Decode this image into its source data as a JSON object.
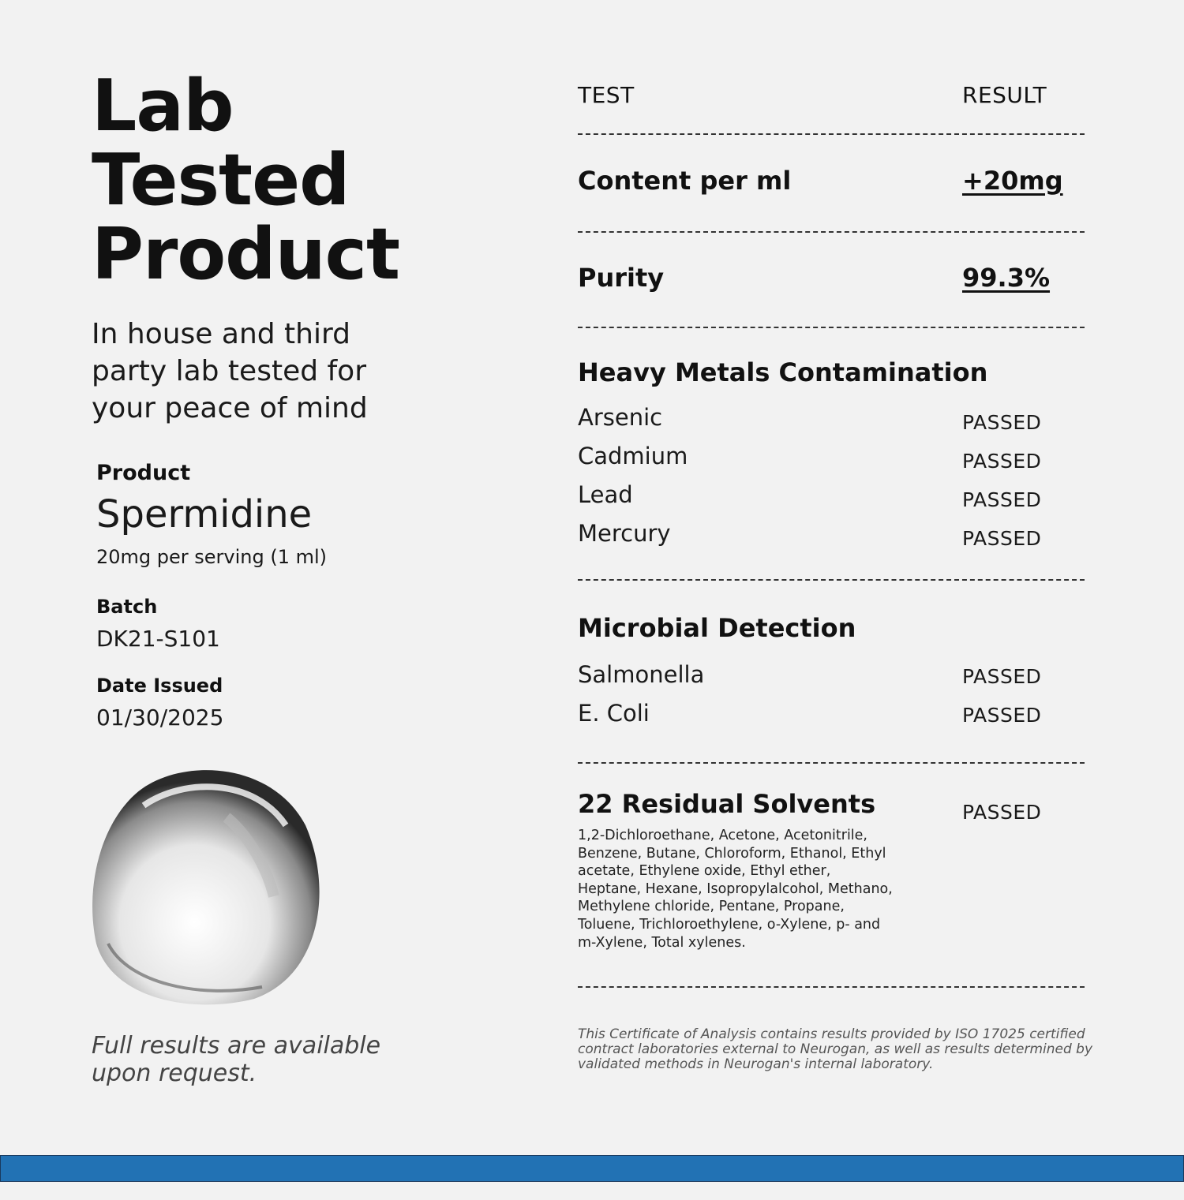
{
  "left": {
    "title_lines": [
      "Lab",
      "Tested",
      "Product"
    ],
    "subtitle": "In house and third party lab tested for your peace of mind",
    "product_label": "Product",
    "product_name": "Spermidine",
    "product_serving": "20mg per serving (1 ml)",
    "batch_label": "Batch",
    "batch_value": "DK21-S101",
    "date_label": "Date Issued",
    "date_value": "01/30/2025",
    "image": "liquid-droplet",
    "note": "Full results are available upon request."
  },
  "right": {
    "header_test": "TEST",
    "header_result": "RESULT",
    "content": {
      "label": "Content per ml",
      "value": "+20mg"
    },
    "purity": {
      "label": "Purity",
      "value": "99.3%"
    },
    "heavy_metals": {
      "title": "Heavy Metals Contamination",
      "items": [
        {
          "name": "Arsenic",
          "result": "PASSED"
        },
        {
          "name": "Cadmium",
          "result": "PASSED"
        },
        {
          "name": "Lead",
          "result": "PASSED"
        },
        {
          "name": "Mercury",
          "result": "PASSED"
        }
      ]
    },
    "microbial": {
      "title": "Microbial Detection",
      "items": [
        {
          "name": "Salmonella",
          "result": "PASSED"
        },
        {
          "name": "E. Coli",
          "result": "PASSED"
        }
      ]
    },
    "solvents": {
      "title": "22 Residual Solvents",
      "result": "PASSED",
      "list": "1,2-Dichloroethane, Acetone, Acetonitrile, Benzene, Butane, Chloroform, Ethanol, Ethyl acetate, Ethylene oxide, Ethyl ether, Heptane, Hexane, Isopropylalcohol, Methano, Methylene chloride, Pentane, Propane, Toluene, Trichloroethylene, o-Xylene, p- and m-Xylene,  Total xylenes."
    },
    "disclaimer": "This Certificate of Analysis contains results provided by ISO 17025 certified contract laboratories external to Neurogan, as well as results determined by validated methods in Neurogan's internal laboratory."
  },
  "colors": {
    "background": "#f2f2f2",
    "footer_bar": "#2272b4",
    "text": "#111111"
  }
}
